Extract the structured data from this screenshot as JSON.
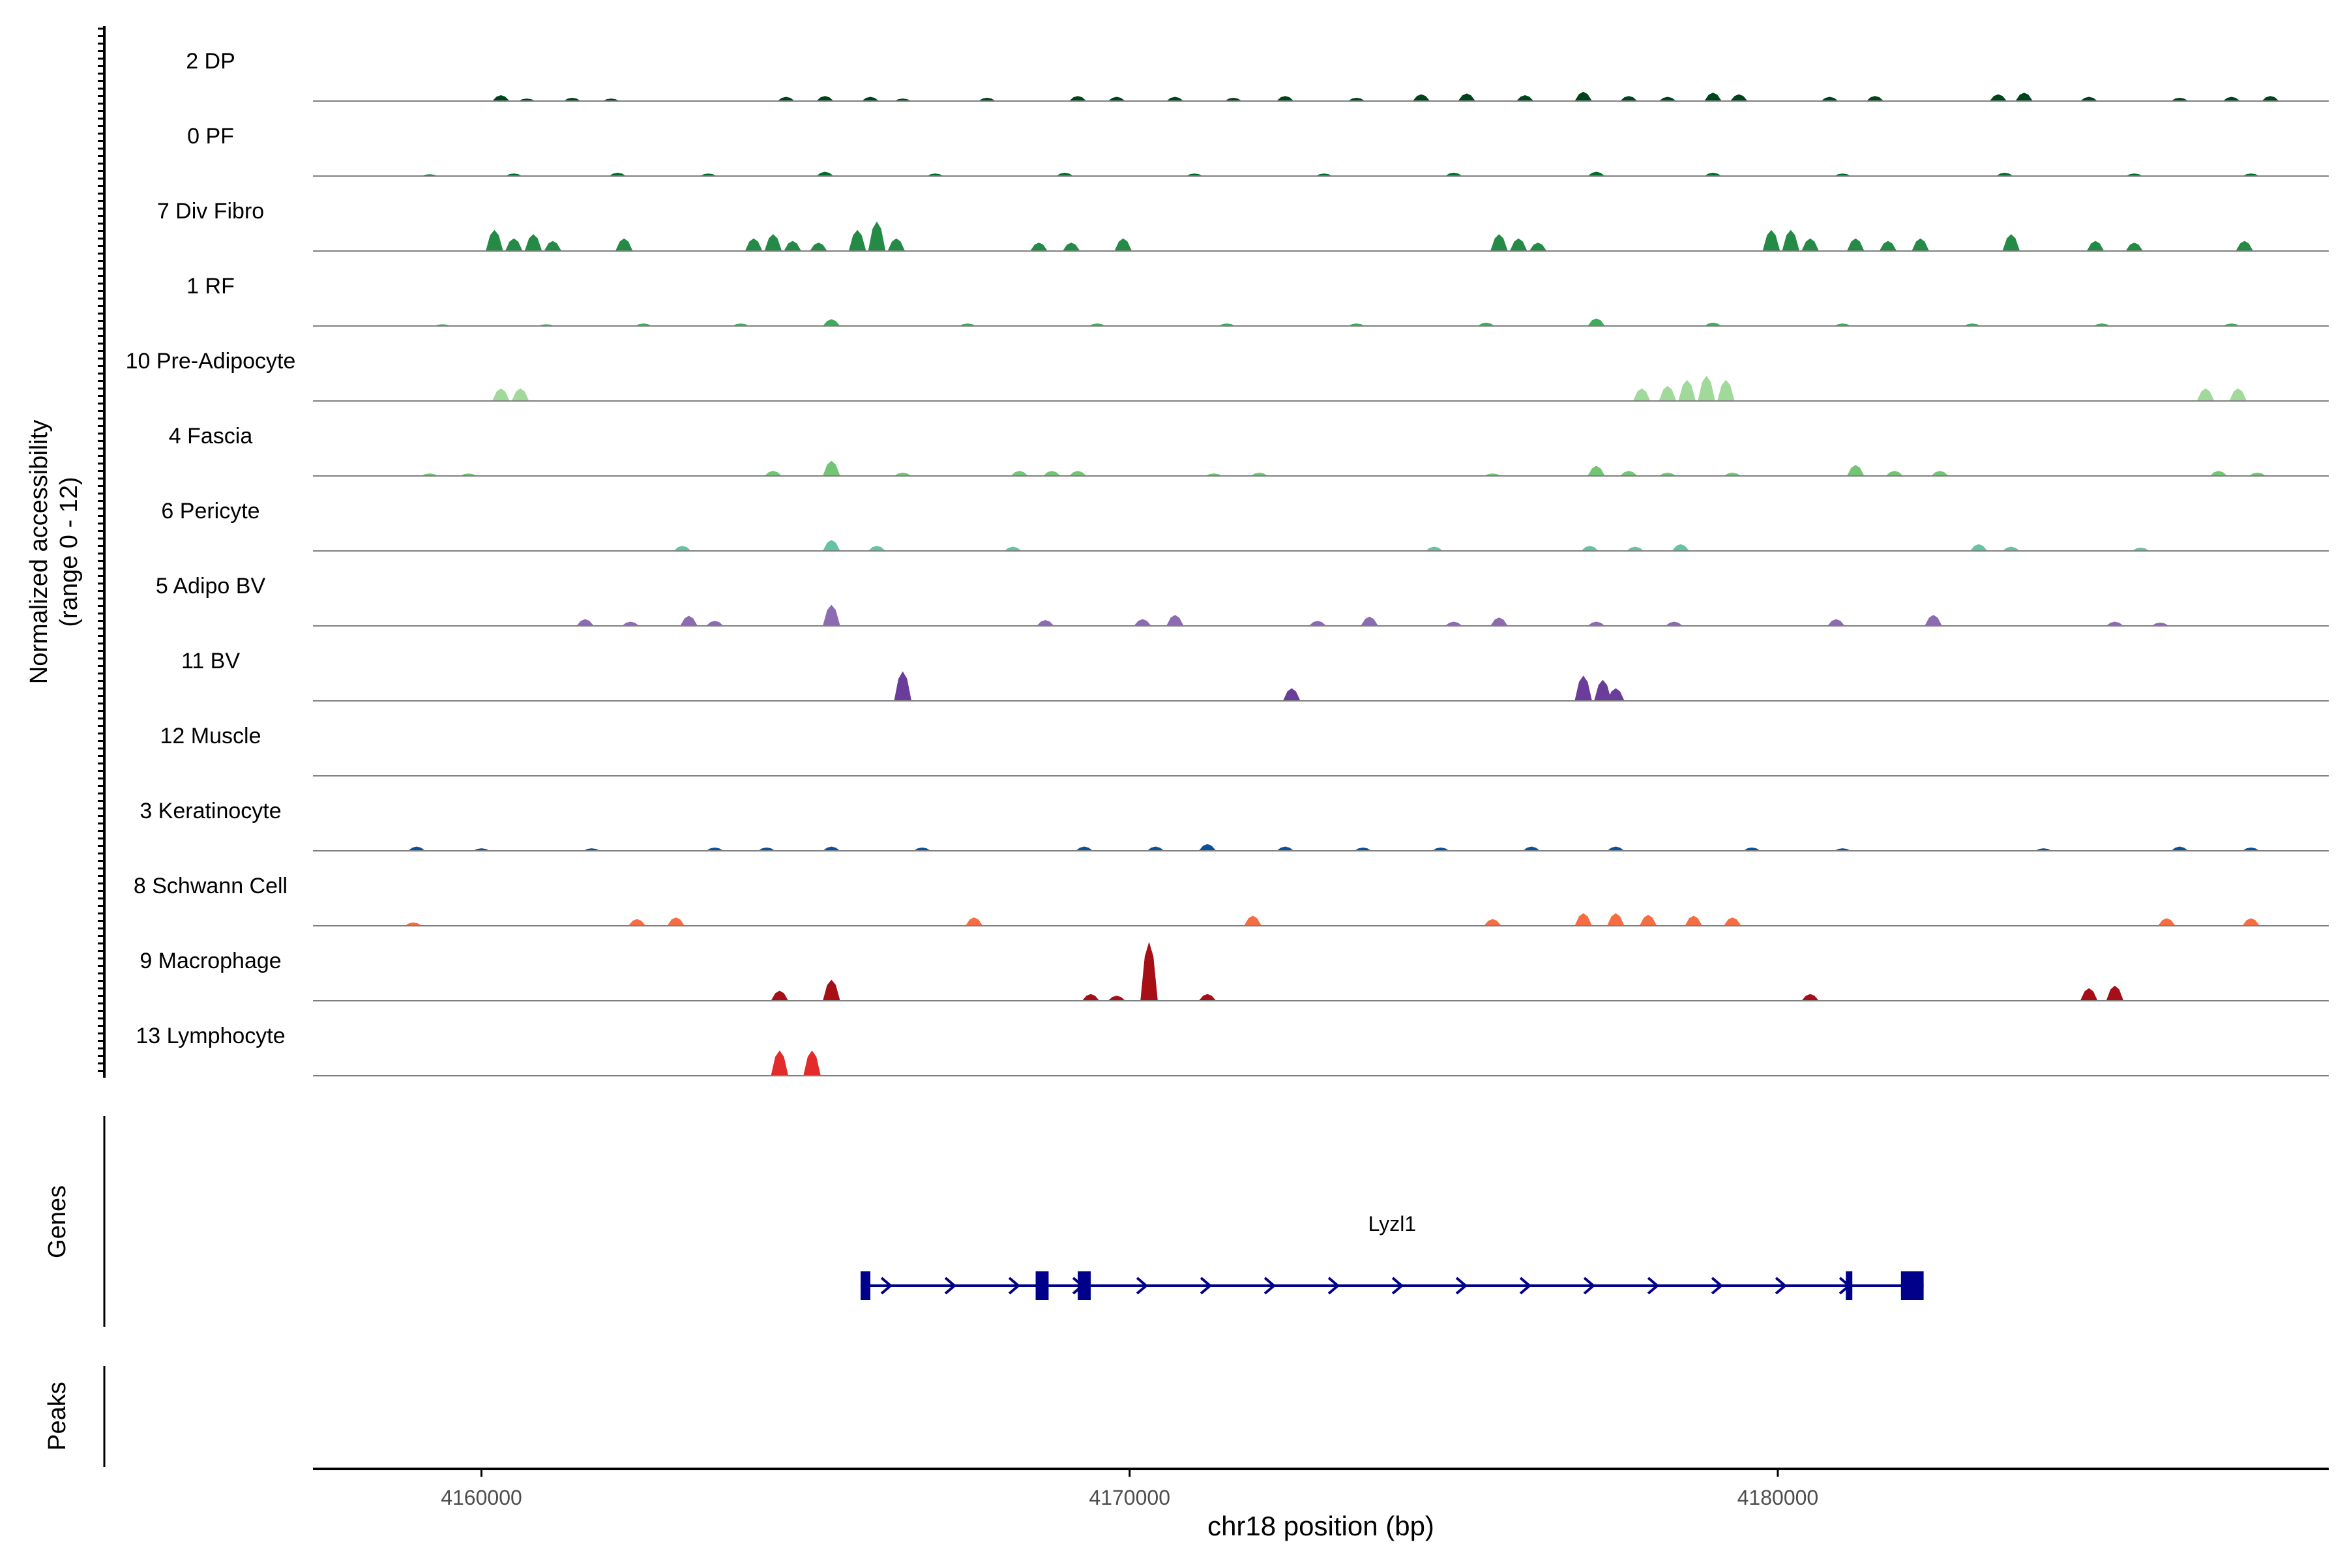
{
  "chart_data": {
    "type": "area",
    "title": "",
    "ylabel_line1": "Normalized accessibility",
    "ylabel_line2": "(range 0 - 12)",
    "xlabel": "chr18 position (bp)",
    "xlim": [
      4157400,
      4188500
    ],
    "ylim": [
      0,
      12
    ],
    "xticks": [
      4160000,
      4170000,
      4180000
    ],
    "xtick_labels": [
      "4160000",
      "4170000",
      "4180000"
    ],
    "tracks": [
      {
        "name": "2 DP",
        "color": "#00441b",
        "peaks": [
          [
            4160300,
            0.7
          ],
          [
            4160700,
            0.3
          ],
          [
            4161400,
            0.4
          ],
          [
            4162000,
            0.3
          ],
          [
            4164700,
            0.5
          ],
          [
            4165300,
            0.6
          ],
          [
            4166000,
            0.5
          ],
          [
            4166500,
            0.3
          ],
          [
            4167800,
            0.4
          ],
          [
            4169200,
            0.6
          ],
          [
            4169800,
            0.5
          ],
          [
            4170700,
            0.5
          ],
          [
            4171600,
            0.4
          ],
          [
            4172400,
            0.6
          ],
          [
            4173500,
            0.4
          ],
          [
            4174500,
            0.8
          ],
          [
            4175200,
            0.9
          ],
          [
            4176100,
            0.7
          ],
          [
            4177000,
            1.1
          ],
          [
            4177700,
            0.6
          ],
          [
            4178300,
            0.5
          ],
          [
            4179000,
            1.0
          ],
          [
            4179400,
            0.8
          ],
          [
            4180800,
            0.5
          ],
          [
            4181500,
            0.6
          ],
          [
            4183400,
            0.8
          ],
          [
            4183800,
            1.0
          ],
          [
            4184800,
            0.5
          ],
          [
            4186200,
            0.4
          ],
          [
            4187000,
            0.5
          ],
          [
            4187600,
            0.6
          ]
        ]
      },
      {
        "name": "0 PF",
        "color": "#006d2c",
        "peaks": [
          [
            4159200,
            0.2
          ],
          [
            4160500,
            0.3
          ],
          [
            4162100,
            0.4
          ],
          [
            4163500,
            0.3
          ],
          [
            4165300,
            0.5
          ],
          [
            4167000,
            0.3
          ],
          [
            4169000,
            0.4
          ],
          [
            4171000,
            0.3
          ],
          [
            4173000,
            0.3
          ],
          [
            4175000,
            0.4
          ],
          [
            4177200,
            0.5
          ],
          [
            4179000,
            0.4
          ],
          [
            4181000,
            0.3
          ],
          [
            4183500,
            0.4
          ],
          [
            4185500,
            0.3
          ],
          [
            4187300,
            0.3
          ]
        ]
      },
      {
        "name": "7 Div Fibro",
        "color": "#238b45",
        "peaks": [
          [
            4160200,
            2.5
          ],
          [
            4160500,
            1.5
          ],
          [
            4160800,
            2.0
          ],
          [
            4161100,
            1.2
          ],
          [
            4162200,
            1.5
          ],
          [
            4164200,
            1.5
          ],
          [
            4164500,
            2.0
          ],
          [
            4164800,
            1.2
          ],
          [
            4165200,
            1.0
          ],
          [
            4165800,
            2.5
          ],
          [
            4166100,
            3.5
          ],
          [
            4166400,
            1.5
          ],
          [
            4168600,
            1.0
          ],
          [
            4169100,
            1.0
          ],
          [
            4169900,
            1.5
          ],
          [
            4175700,
            2.0
          ],
          [
            4176000,
            1.5
          ],
          [
            4176300,
            1.0
          ],
          [
            4179900,
            2.5
          ],
          [
            4180200,
            2.5
          ],
          [
            4180500,
            1.5
          ],
          [
            4181200,
            1.5
          ],
          [
            4181700,
            1.2
          ],
          [
            4182200,
            1.5
          ],
          [
            4183600,
            2.0
          ],
          [
            4184900,
            1.2
          ],
          [
            4185500,
            1.0
          ],
          [
            4187200,
            1.2
          ]
        ]
      },
      {
        "name": "1 RF",
        "color": "#41ab5d",
        "peaks": [
          [
            4159400,
            0.2
          ],
          [
            4161000,
            0.2
          ],
          [
            4162500,
            0.3
          ],
          [
            4164000,
            0.3
          ],
          [
            4165400,
            0.8
          ],
          [
            4167500,
            0.3
          ],
          [
            4169500,
            0.3
          ],
          [
            4171500,
            0.3
          ],
          [
            4173500,
            0.3
          ],
          [
            4175500,
            0.4
          ],
          [
            4177200,
            0.9
          ],
          [
            4179000,
            0.4
          ],
          [
            4181000,
            0.3
          ],
          [
            4183000,
            0.3
          ],
          [
            4185000,
            0.3
          ],
          [
            4187000,
            0.3
          ]
        ]
      },
      {
        "name": "10 Pre-Adipocyte",
        "color": "#a1d99b",
        "peaks": [
          [
            4160300,
            1.5
          ],
          [
            4160600,
            1.5
          ],
          [
            4177900,
            1.5
          ],
          [
            4178300,
            1.8
          ],
          [
            4178600,
            2.5
          ],
          [
            4178900,
            3.0
          ],
          [
            4179200,
            2.5
          ],
          [
            4186600,
            1.5
          ],
          [
            4187100,
            1.5
          ]
        ]
      },
      {
        "name": "4 Fascia",
        "color": "#74c476",
        "peaks": [
          [
            4159200,
            0.3
          ],
          [
            4159800,
            0.3
          ],
          [
            4164500,
            0.6
          ],
          [
            4165400,
            1.8
          ],
          [
            4166500,
            0.4
          ],
          [
            4168300,
            0.6
          ],
          [
            4168800,
            0.6
          ],
          [
            4169200,
            0.6
          ],
          [
            4171300,
            0.3
          ],
          [
            4172000,
            0.4
          ],
          [
            4175600,
            0.3
          ],
          [
            4177200,
            1.2
          ],
          [
            4177700,
            0.6
          ],
          [
            4178300,
            0.4
          ],
          [
            4179300,
            0.4
          ],
          [
            4181200,
            1.3
          ],
          [
            4181800,
            0.6
          ],
          [
            4182500,
            0.6
          ],
          [
            4186800,
            0.6
          ],
          [
            4187400,
            0.4
          ]
        ]
      },
      {
        "name": "6 Pericyte",
        "color": "#66c2a4",
        "peaks": [
          [
            4163100,
            0.6
          ],
          [
            4165400,
            1.3
          ],
          [
            4166100,
            0.6
          ],
          [
            4168200,
            0.5
          ],
          [
            4174700,
            0.5
          ],
          [
            4177100,
            0.6
          ],
          [
            4177800,
            0.5
          ],
          [
            4178500,
            0.8
          ],
          [
            4183100,
            0.8
          ],
          [
            4183600,
            0.5
          ],
          [
            4185600,
            0.4
          ]
        ]
      },
      {
        "name": "5 Adipo BV",
        "color": "#8c6bb1",
        "peaks": [
          [
            4161600,
            0.8
          ],
          [
            4162300,
            0.5
          ],
          [
            4163200,
            1.2
          ],
          [
            4163600,
            0.6
          ],
          [
            4165400,
            2.5
          ],
          [
            4168700,
            0.7
          ],
          [
            4170200,
            0.8
          ],
          [
            4170700,
            1.3
          ],
          [
            4172900,
            0.6
          ],
          [
            4173700,
            1.1
          ],
          [
            4175000,
            0.5
          ],
          [
            4175700,
            1.0
          ],
          [
            4177200,
            0.5
          ],
          [
            4178400,
            0.5
          ],
          [
            4180900,
            0.8
          ],
          [
            4182400,
            1.3
          ],
          [
            4185200,
            0.5
          ],
          [
            4185900,
            0.4
          ]
        ]
      },
      {
        "name": "11 BV",
        "color": "#6a3d9a",
        "peaks": [
          [
            4166500,
            3.5
          ],
          [
            4172500,
            1.5
          ],
          [
            4177000,
            3.0
          ],
          [
            4177300,
            2.5
          ],
          [
            4177500,
            1.5
          ]
        ]
      },
      {
        "name": "12 Muscle",
        "color": "#4d4d4d",
        "peaks": []
      },
      {
        "name": "3 Keratinocyte",
        "color": "#08519c",
        "peaks": [
          [
            4159000,
            0.5
          ],
          [
            4160000,
            0.3
          ],
          [
            4161700,
            0.3
          ],
          [
            4163600,
            0.4
          ],
          [
            4164400,
            0.4
          ],
          [
            4165400,
            0.5
          ],
          [
            4166800,
            0.4
          ],
          [
            4169300,
            0.5
          ],
          [
            4170400,
            0.5
          ],
          [
            4171200,
            0.8
          ],
          [
            4172400,
            0.5
          ],
          [
            4173600,
            0.4
          ],
          [
            4174800,
            0.4
          ],
          [
            4176200,
            0.5
          ],
          [
            4177500,
            0.5
          ],
          [
            4179600,
            0.4
          ],
          [
            4181000,
            0.3
          ],
          [
            4184100,
            0.3
          ],
          [
            4186200,
            0.5
          ],
          [
            4187300,
            0.4
          ]
        ]
      },
      {
        "name": "8 Schwann Cell",
        "color": "#f46d43",
        "peaks": [
          [
            4158950,
            0.4
          ],
          [
            4162400,
            0.8
          ],
          [
            4163000,
            1.0
          ],
          [
            4167600,
            1.0
          ],
          [
            4171900,
            1.2
          ],
          [
            4175600,
            0.8
          ],
          [
            4177000,
            1.5
          ],
          [
            4177500,
            1.5
          ],
          [
            4178000,
            1.3
          ],
          [
            4178700,
            1.2
          ],
          [
            4179300,
            1.0
          ],
          [
            4186000,
            0.9
          ],
          [
            4187300,
            0.9
          ]
        ]
      },
      {
        "name": "9 Macrophage",
        "color": "#a50f15",
        "peaks": [
          [
            4164600,
            1.2
          ],
          [
            4165400,
            2.5
          ],
          [
            4169400,
            0.8
          ],
          [
            4169800,
            0.6
          ],
          [
            4170300,
            7.0
          ],
          [
            4171200,
            0.8
          ],
          [
            4180500,
            0.8
          ],
          [
            4184800,
            1.5
          ],
          [
            4185200,
            1.8
          ]
        ]
      },
      {
        "name": "13 Lymphocyte",
        "color": "#e32b2b",
        "peaks": [
          [
            4164600,
            3.0
          ],
          [
            4165100,
            3.0
          ]
        ]
      }
    ],
    "genes_label": "Genes",
    "peaks_label": "Peaks",
    "gene": {
      "name": "Lyzl1",
      "strand": "+",
      "color": "#00008b",
      "start": 4165850,
      "end": 4182250,
      "exons": [
        [
          4165850,
          4166000
        ],
        [
          4168550,
          4168750
        ],
        [
          4169200,
          4169400
        ],
        [
          4181050,
          4181150
        ],
        [
          4181900,
          4182250
        ]
      ]
    }
  }
}
